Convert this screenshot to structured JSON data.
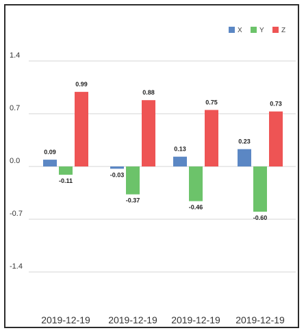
{
  "chart_data": {
    "type": "bar",
    "title": "",
    "xlabel": "",
    "ylabel": "",
    "categories": [
      "2019-12-19",
      "2019-12-19",
      "2019-12-19",
      "2019-12-19"
    ],
    "y_ticks": [
      1.4,
      0.7,
      0.0,
      -0.7,
      -1.4
    ],
    "y_tick_labels": [
      "1.4",
      "0.7",
      "0.0",
      "-0.7",
      "-1.4"
    ],
    "ylim": [
      -1.9,
      1.9
    ],
    "grid": true,
    "legend_position": "top-right",
    "series": [
      {
        "name": "X",
        "color": "#5b87c4",
        "values": [
          0.09,
          -0.03,
          0.13,
          0.23
        ],
        "labels": [
          "0.09",
          "-0.03",
          "0.13",
          "0.23"
        ]
      },
      {
        "name": "Y",
        "color": "#6cc36a",
        "values": [
          -0.11,
          -0.37,
          -0.46,
          -0.6
        ],
        "labels": [
          "-0.11",
          "-0.37",
          "-0.46",
          "-0.60"
        ]
      },
      {
        "name": "Z",
        "color": "#ee5454",
        "values": [
          0.99,
          0.88,
          0.75,
          0.73
        ],
        "labels": [
          "0.99",
          "0.88",
          "0.75",
          "0.73"
        ]
      }
    ]
  }
}
